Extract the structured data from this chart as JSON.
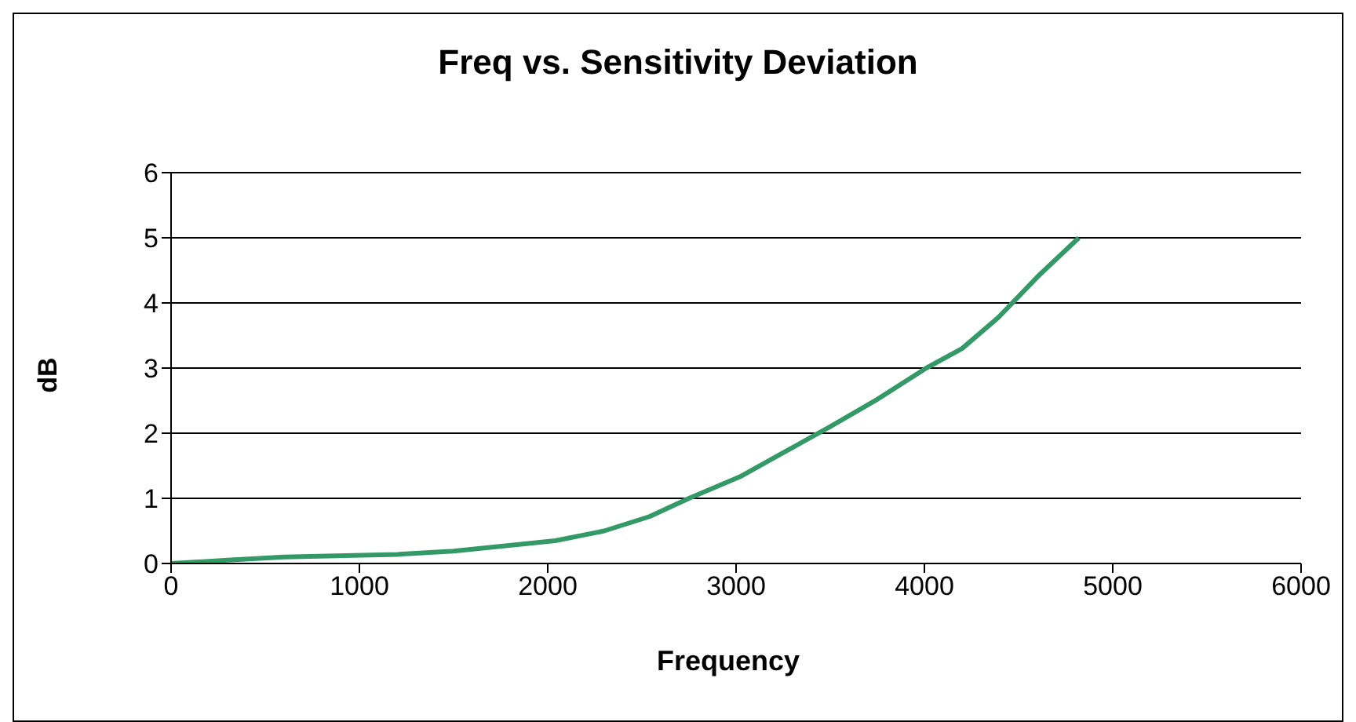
{
  "chart_data": {
    "type": "line",
    "title": "Freq vs. Sensitivity Deviation",
    "xlabel": "Frequency",
    "ylabel": "dB",
    "x": [
      0,
      300,
      600,
      1200,
      1500,
      2040,
      2300,
      2540,
      2750,
      3020,
      3250,
      3500,
      3750,
      4010,
      4200,
      4390,
      4600,
      4820
    ],
    "series": [
      {
        "color": "#339966",
        "values": [
          0,
          0.05,
          0.1,
          0.14,
          0.19,
          0.35,
          0.5,
          0.72,
          1.0,
          1.33,
          1.7,
          2.1,
          2.52,
          3.0,
          3.3,
          3.77,
          4.4,
          5.0
        ]
      }
    ],
    "xlim": [
      0,
      6000
    ],
    "xticks": [
      0,
      1000,
      2000,
      3000,
      4000,
      5000,
      6000
    ],
    "ylim": [
      0,
      6
    ],
    "yticks": [
      0,
      1,
      2,
      3,
      4,
      5,
      6
    ],
    "grid": "y",
    "legend": false,
    "marker": "none",
    "line_style": "solid"
  }
}
